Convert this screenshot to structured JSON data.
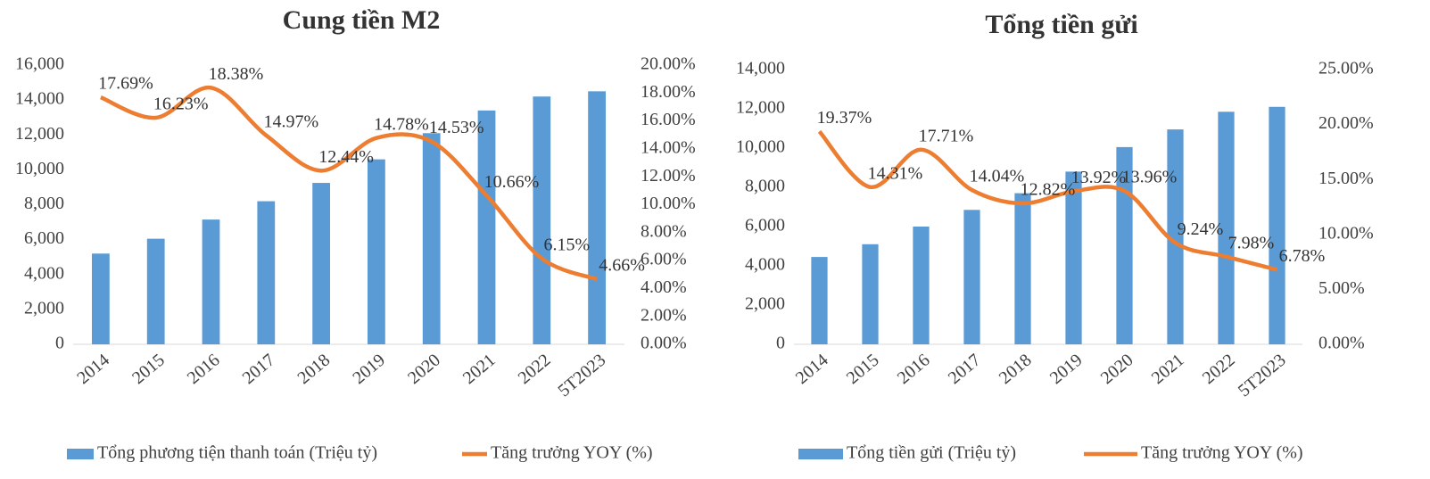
{
  "chart_data": [
    {
      "type": "bar_line",
      "title": "Cung tiền M2",
      "categories": [
        "2014",
        "2015",
        "2016",
        "2017",
        "2018",
        "2019",
        "2020",
        "2021",
        "2022",
        "5T2023"
      ],
      "series": [
        {
          "name": "Tổng phương tiện thanh toán (Triệu tỷ)",
          "color": "#5b9bd5",
          "type": "bar",
          "values": [
            5200,
            6050,
            7150,
            8200,
            9250,
            10600,
            12100,
            13400,
            14200,
            14500
          ]
        },
        {
          "name": "Tăng trưởng YOY (%)",
          "color": "#ed7d31",
          "type": "line",
          "axis": "y2",
          "values": [
            17.69,
            16.23,
            18.38,
            14.97,
            12.44,
            14.78,
            14.53,
            10.66,
            6.15,
            4.66
          ],
          "value_labels": [
            "17.69%",
            "16.23%",
            "18.38%",
            "14.97%",
            "12.44%",
            "14.78%",
            "14.53%",
            "10.66%",
            "6.15%",
            "4.66%"
          ]
        }
      ],
      "ylim": [
        0,
        16000
      ],
      "yticks": [
        0,
        {
          "value": 2000,
          "label": "2,000"
        },
        {
          "value": 4000,
          "label": "4,000"
        },
        {
          "value": 6000,
          "label": "6,000"
        },
        {
          "value": 8000,
          "label": "8,000"
        },
        {
          "value": 10000,
          "label": "10,000"
        },
        {
          "value": 12000,
          "label": "12,000"
        },
        {
          "value": 14000,
          "label": "14,000"
        },
        {
          "value": 16000,
          "label": "16,000"
        }
      ],
      "y2lim": [
        0,
        20
      ],
      "y2ticks": [
        {
          "value": 0,
          "label": "0.00%"
        },
        {
          "value": 2,
          "label": "2.00%"
        },
        {
          "value": 4,
          "label": "4.00%"
        },
        {
          "value": 6,
          "label": "6.00%"
        },
        {
          "value": 8,
          "label": "8.00%"
        },
        {
          "value": 10,
          "label": "10.00%"
        },
        {
          "value": 12,
          "label": "12.00%"
        },
        {
          "value": 14,
          "label": "14.00%"
        },
        {
          "value": 16,
          "label": "16.00%"
        },
        {
          "value": 18,
          "label": "18.00%"
        },
        {
          "value": 20,
          "label": "20.00%"
        }
      ],
      "legend": "bottom"
    },
    {
      "type": "bar_line",
      "title": "Tổng tiền gửi",
      "categories": [
        "2014",
        "2015",
        "2016",
        "2017",
        "2018",
        "2019",
        "2020",
        "2021",
        "2022",
        "5T2023"
      ],
      "series": [
        {
          "name": "Tổng tiền gửi (Triệu tỷ)",
          "color": "#5b9bd5",
          "type": "bar",
          "values": [
            4450,
            5100,
            6000,
            6850,
            7700,
            8800,
            10050,
            10950,
            11850,
            12100
          ]
        },
        {
          "name": "Tăng trưởng YOY (%)",
          "color": "#ed7d31",
          "type": "line",
          "axis": "y2",
          "values": [
            19.37,
            14.31,
            17.71,
            14.04,
            12.82,
            13.92,
            13.96,
            9.24,
            7.98,
            6.78
          ],
          "value_labels": [
            "19.37%",
            "14.31%",
            "17.71%",
            "14.04%",
            "12.82%",
            "13.92%",
            "13.96%",
            "9.24%",
            "7.98%",
            "6.78%"
          ]
        }
      ],
      "ylim": [
        0,
        14000
      ],
      "yticks": [
        0,
        {
          "value": 2000,
          "label": "2,000"
        },
        {
          "value": 4000,
          "label": "4,000"
        },
        {
          "value": 6000,
          "label": "6,000"
        },
        {
          "value": 8000,
          "label": "8,000"
        },
        {
          "value": 10000,
          "label": "10,000"
        },
        {
          "value": 12000,
          "label": "12,000"
        },
        {
          "value": 14000,
          "label": "14,000"
        }
      ],
      "y2lim": [
        0,
        25
      ],
      "y2ticks": [
        {
          "value": 0,
          "label": "0.00%"
        },
        {
          "value": 5,
          "label": "5.00%"
        },
        {
          "value": 10,
          "label": "10.00%"
        },
        {
          "value": 15,
          "label": "15.00%"
        },
        {
          "value": 20,
          "label": "20.00%"
        },
        {
          "value": 25,
          "label": "25.00%"
        }
      ],
      "legend": "bottom"
    }
  ]
}
